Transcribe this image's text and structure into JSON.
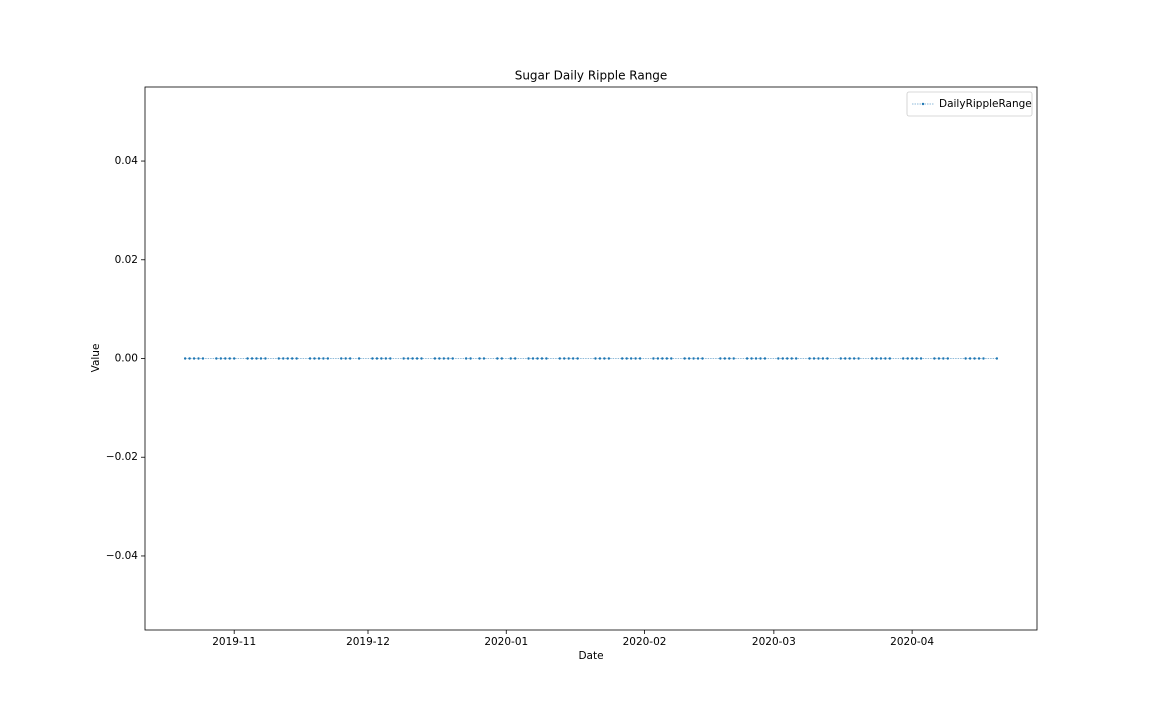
{
  "chart_data": {
    "type": "line",
    "title": "Sugar Daily Ripple Range",
    "x_label": "Date",
    "y_label": "Value",
    "x": [
      "2019-10-21",
      "2019-10-22",
      "2019-10-23",
      "2019-10-24",
      "2019-10-25",
      "2019-10-28",
      "2019-10-29",
      "2019-10-30",
      "2019-10-31",
      "2019-11-01",
      "2019-11-04",
      "2019-11-05",
      "2019-11-06",
      "2019-11-07",
      "2019-11-08",
      "2019-11-11",
      "2019-11-12",
      "2019-11-13",
      "2019-11-14",
      "2019-11-15",
      "2019-11-18",
      "2019-11-19",
      "2019-11-20",
      "2019-11-21",
      "2019-11-22",
      "2019-11-25",
      "2019-11-26",
      "2019-11-27",
      "2019-11-29",
      "2019-12-02",
      "2019-12-03",
      "2019-12-04",
      "2019-12-05",
      "2019-12-06",
      "2019-12-09",
      "2019-12-10",
      "2019-12-11",
      "2019-12-12",
      "2019-12-13",
      "2019-12-16",
      "2019-12-17",
      "2019-12-18",
      "2019-12-19",
      "2019-12-20",
      "2019-12-23",
      "2019-12-24",
      "2019-12-26",
      "2019-12-27",
      "2019-12-30",
      "2019-12-31",
      "2020-01-02",
      "2020-01-03",
      "2020-01-06",
      "2020-01-07",
      "2020-01-08",
      "2020-01-09",
      "2020-01-10",
      "2020-01-13",
      "2020-01-14",
      "2020-01-15",
      "2020-01-16",
      "2020-01-17",
      "2020-01-21",
      "2020-01-22",
      "2020-01-23",
      "2020-01-24",
      "2020-01-27",
      "2020-01-28",
      "2020-01-29",
      "2020-01-30",
      "2020-01-31",
      "2020-02-03",
      "2020-02-04",
      "2020-02-05",
      "2020-02-06",
      "2020-02-07",
      "2020-02-10",
      "2020-02-11",
      "2020-02-12",
      "2020-02-13",
      "2020-02-14",
      "2020-02-18",
      "2020-02-19",
      "2020-02-20",
      "2020-02-21",
      "2020-02-24",
      "2020-02-25",
      "2020-02-26",
      "2020-02-27",
      "2020-02-28",
      "2020-03-02",
      "2020-03-03",
      "2020-03-04",
      "2020-03-05",
      "2020-03-06",
      "2020-03-09",
      "2020-03-10",
      "2020-03-11",
      "2020-03-12",
      "2020-03-13",
      "2020-03-16",
      "2020-03-17",
      "2020-03-18",
      "2020-03-19",
      "2020-03-20",
      "2020-03-23",
      "2020-03-24",
      "2020-03-25",
      "2020-03-26",
      "2020-03-27",
      "2020-03-30",
      "2020-03-31",
      "2020-04-01",
      "2020-04-02",
      "2020-04-03",
      "2020-04-06",
      "2020-04-07",
      "2020-04-08",
      "2020-04-09",
      "2020-04-13",
      "2020-04-14",
      "2020-04-15",
      "2020-04-16",
      "2020-04-17",
      "2020-04-20"
    ],
    "series": [
      {
        "name": "DailyRippleRange",
        "color": "#1f77b4",
        "values": [
          0,
          0,
          0,
          0,
          0,
          0,
          0,
          0,
          0,
          0,
          0,
          0,
          0,
          0,
          0,
          0,
          0,
          0,
          0,
          0,
          0,
          0,
          0,
          0,
          0,
          0,
          0,
          0,
          0,
          0,
          0,
          0,
          0,
          0,
          0,
          0,
          0,
          0,
          0,
          0,
          0,
          0,
          0,
          0,
          0,
          0,
          0,
          0,
          0,
          0,
          0,
          0,
          0,
          0,
          0,
          0,
          0,
          0,
          0,
          0,
          0,
          0,
          0,
          0,
          0,
          0,
          0,
          0,
          0,
          0,
          0,
          0,
          0,
          0,
          0,
          0,
          0,
          0,
          0,
          0,
          0,
          0,
          0,
          0,
          0,
          0,
          0,
          0,
          0,
          0,
          0,
          0,
          0,
          0,
          0,
          0,
          0,
          0,
          0,
          0,
          0,
          0,
          0,
          0,
          0,
          0,
          0,
          0,
          0,
          0,
          0,
          0,
          0,
          0,
          0,
          0,
          0,
          0,
          0,
          0,
          0,
          0,
          0,
          0,
          0
        ]
      }
    ],
    "xlim": [
      "2019-10-12",
      "2020-04-29"
    ],
    "xticks": [
      "2019-11",
      "2019-12",
      "2020-01",
      "2020-02",
      "2020-03",
      "2020-04"
    ],
    "ylim": [
      -0.055,
      0.055
    ],
    "yticks": [
      {
        "value": -0.04,
        "label": "−0.04"
      },
      {
        "value": -0.02,
        "label": "−0.02"
      },
      {
        "value": 0,
        "label": "0.00"
      },
      0.02,
      0.04
    ],
    "legend": "upper right",
    "grid": false
  }
}
